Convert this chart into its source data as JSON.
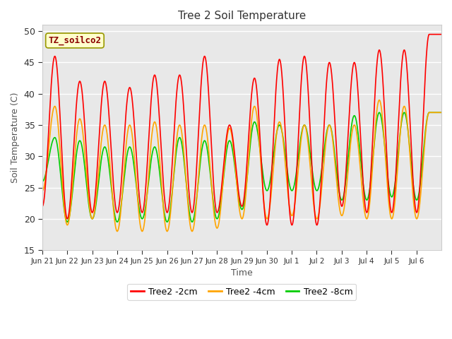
{
  "title": "Tree 2 Soil Temperature",
  "xlabel": "Time",
  "ylabel": "Soil Temperature (C)",
  "ylim": [
    15,
    51
  ],
  "yticks": [
    15,
    20,
    25,
    30,
    35,
    40,
    45,
    50
  ],
  "legend_label": "TZ_soilco2",
  "series_labels": [
    "Tree2 -2cm",
    "Tree2 -4cm",
    "Tree2 -8cm"
  ],
  "series_colors": [
    "#ff0000",
    "#ffa500",
    "#00cc00"
  ],
  "fig_bg_color": "#ffffff",
  "plot_bg_color": "#e8e8e8",
  "xtick_labels": [
    "Jun 21",
    "Jun 22",
    "Jun 23",
    "Jun 24",
    "Jun 25",
    "Jun 26",
    "Jun 27",
    "Jun 28",
    "Jun 29",
    "Jun 30",
    "Jul 1",
    "Jul 2",
    "Jul 3",
    "Jul 4",
    "Jul 5",
    "Jul 6"
  ],
  "num_days": 16,
  "day_peaks_2cm": [
    22,
    46,
    20,
    42,
    21,
    42,
    21,
    41,
    21,
    43,
    21,
    43,
    21,
    46,
    21,
    35,
    22,
    42.5,
    19,
    45.5,
    19,
    46,
    19,
    45,
    22,
    45,
    21,
    47,
    21,
    47,
    21,
    49.5
  ],
  "day_peaks_4cm": [
    24.5,
    38,
    19,
    36,
    20,
    35,
    18,
    35,
    18,
    35.5,
    18,
    35,
    18,
    35,
    18.5,
    34.5,
    20,
    38,
    20,
    35.5,
    20.5,
    35,
    20,
    35,
    20.5,
    35,
    20,
    39,
    20,
    38,
    20,
    37
  ],
  "day_peaks_8cm": [
    26,
    33,
    19.5,
    32.5,
    20,
    31.5,
    19.5,
    31.5,
    20,
    31.5,
    19.5,
    33,
    19.5,
    32.5,
    20,
    32.5,
    21.5,
    35.5,
    24.5,
    35,
    24.5,
    35,
    24.5,
    35,
    23,
    36.5,
    23,
    37,
    23.5,
    37,
    23,
    37
  ]
}
